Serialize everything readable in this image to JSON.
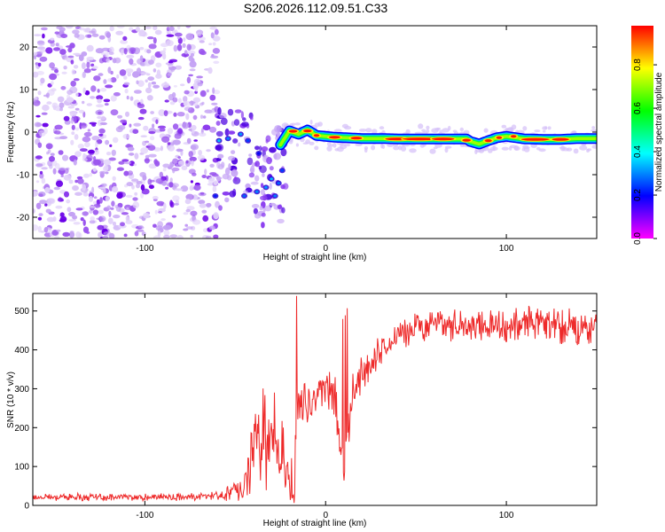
{
  "chart_data": [
    {
      "type": "heatmap",
      "title": "S206.2026.112.09.51.C33",
      "xlabel": "Height of straight line (km)",
      "ylabel": "Frequency (Hz)",
      "xlim": [
        -162,
        150
      ],
      "ylim": [
        -25,
        25
      ],
      "xticks": [
        -100,
        0,
        100
      ],
      "yticks": [
        -20,
        -10,
        0,
        10,
        20
      ],
      "colorbar": {
        "label": "Normalized spectral amplitude",
        "range": [
          0.0,
          0.98
        ],
        "ticks": [
          "0.0",
          "0.2",
          "0.4",
          "0.6",
          "0.8"
        ],
        "colors": [
          "#ff00ff",
          "#0000ff",
          "#00ffff",
          "#00ff00",
          "#ffff00",
          "#ff0000"
        ]
      },
      "regions": [
        {
          "name": "noise",
          "x": [
            -162,
            -60
          ],
          "frequency": [
            -25,
            25
          ],
          "amplitude": 0.05
        },
        {
          "name": "onset",
          "x": [
            -60,
            -22
          ],
          "frequency": [
            -18,
            5
          ],
          "amplitude": 0.2
        },
        {
          "name": "signal",
          "x": [
            -22,
            150
          ],
          "frequency": [
            -1.5,
            0.5
          ],
          "amplitude": 0.95
        }
      ],
      "signal_line": {
        "x": [
          -25,
          -20,
          -15,
          -10,
          -5,
          0,
          5,
          10,
          20,
          30,
          40,
          50,
          60,
          70,
          78,
          80,
          85,
          90,
          95,
          100,
          110,
          120,
          130,
          140,
          150
        ],
        "frequency": [
          -3,
          0.3,
          -0.5,
          0.5,
          -0.8,
          -1.0,
          -1.2,
          -1.3,
          -1.5,
          -1.5,
          -1.6,
          -1.6,
          -1.6,
          -1.6,
          -1.6,
          -2.2,
          -2.8,
          -2.0,
          -1.3,
          -1.0,
          -1.6,
          -1.7,
          -1.7,
          -1.5,
          -1.5
        ]
      }
    },
    {
      "type": "line",
      "xlabel": "Height of straight line (km)",
      "ylabel": "SNR (10 * v/v)",
      "xlim": [
        -162,
        150
      ],
      "ylim": [
        0,
        545
      ],
      "xticks": [
        -100,
        0,
        100
      ],
      "yticks": [
        0,
        100,
        200,
        300,
        400,
        500
      ],
      "series": [
        {
          "name": "SNR",
          "color": "#ee2a2a",
          "x": [
            -162,
            -140,
            -120,
            -100,
            -80,
            -60,
            -50,
            -45,
            -40,
            -35,
            -30,
            -25,
            -20,
            -15,
            -10,
            -5,
            0,
            5,
            10,
            15,
            20,
            25,
            30,
            40,
            50,
            60,
            80,
            100,
            120,
            140,
            150
          ],
          "mean": [
            20,
            22,
            20,
            22,
            20,
            25,
            35,
            60,
            120,
            170,
            180,
            160,
            60,
            260,
            250,
            280,
            300,
            290,
            80,
            290,
            340,
            360,
            400,
            430,
            460,
            465,
            460,
            460,
            465,
            460,
            465
          ],
          "spread": [
            10,
            10,
            10,
            10,
            10,
            12,
            25,
            50,
            120,
            140,
            130,
            110,
            50,
            80,
            70,
            60,
            60,
            60,
            40,
            60,
            50,
            40,
            40,
            40,
            40,
            40,
            50,
            50,
            50,
            50,
            50
          ]
        }
      ]
    }
  ]
}
